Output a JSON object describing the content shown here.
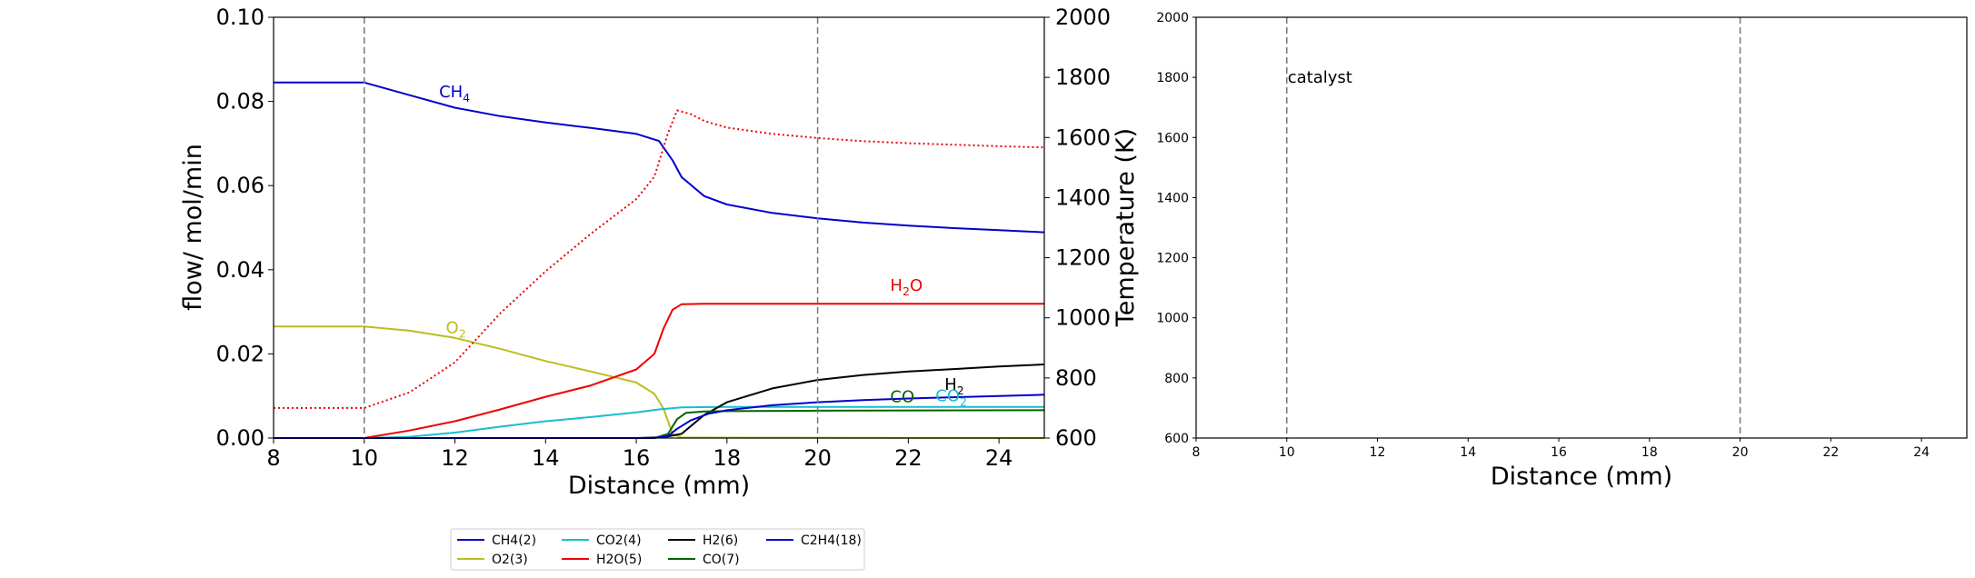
{
  "chart_data": [
    {
      "type": "line",
      "xlabel": "Distance (mm)",
      "ylabel": "flow/ mol/min",
      "ylabel_right": "Temperature (K)",
      "xlim": [
        8,
        25
      ],
      "ylim": [
        0,
        0.1
      ],
      "ylim_right": [
        600,
        2000
      ],
      "xticks": [
        "8",
        "10",
        "12",
        "14",
        "16",
        "18",
        "20",
        "22",
        "24"
      ],
      "yticks": [
        "0.00",
        "0.02",
        "0.04",
        "0.06",
        "0.08",
        "0.10"
      ],
      "yticks_right": [
        "600",
        "800",
        "1000",
        "1200",
        "1400",
        "1600",
        "1800",
        "2000"
      ],
      "vlines": [
        10,
        20
      ],
      "grid": false,
      "legend_position": "bottom-center",
      "series": [
        {
          "name": "CH4(2)",
          "color": "#0000cc",
          "style": "solid",
          "x": [
            8,
            10,
            11,
            12,
            13,
            14,
            15,
            16,
            16.5,
            16.8,
            17,
            17.5,
            18,
            19,
            20,
            21,
            22,
            23,
            24,
            25
          ],
          "values": [
            0.0845,
            0.0845,
            0.0815,
            0.0785,
            0.0765,
            0.075,
            0.0737,
            0.0723,
            0.0706,
            0.066,
            0.062,
            0.0575,
            0.0555,
            0.0535,
            0.0522,
            0.0512,
            0.0505,
            0.0499,
            0.0494,
            0.0489
          ]
        },
        {
          "name": "O2(3)",
          "color": "#bcbd22",
          "style": "solid",
          "x": [
            8,
            10,
            11,
            12,
            13,
            14,
            15,
            16,
            16.4,
            16.6,
            16.8,
            17,
            25
          ],
          "values": [
            0.0265,
            0.0265,
            0.0255,
            0.0238,
            0.0212,
            0.0183,
            0.0158,
            0.0132,
            0.0105,
            0.007,
            0.001,
            0.0001,
            0.0
          ]
        },
        {
          "name": "CO2(4)",
          "color": "#17becf",
          "style": "solid",
          "x": [
            8,
            10,
            11,
            12,
            13,
            14,
            15,
            16,
            16.5,
            17,
            18,
            20,
            25
          ],
          "values": [
            0.0,
            0.0,
            0.0003,
            0.0013,
            0.0027,
            0.004,
            0.005,
            0.0061,
            0.0068,
            0.0073,
            0.0074,
            0.0074,
            0.0074
          ]
        },
        {
          "name": "H2O(5)",
          "color": "#ee0000",
          "style": "solid",
          "x": [
            8,
            10,
            11,
            12,
            13,
            14,
            15,
            16,
            16.4,
            16.6,
            16.8,
            17,
            17.5,
            20,
            25
          ],
          "values": [
            0.0,
            0.0,
            0.0018,
            0.004,
            0.0068,
            0.0098,
            0.0125,
            0.0163,
            0.02,
            0.026,
            0.0305,
            0.0318,
            0.0319,
            0.0319,
            0.0319
          ]
        },
        {
          "name": "H2(6)",
          "color": "#000000",
          "style": "solid",
          "x": [
            8,
            16,
            16.6,
            17,
            17.5,
            18,
            19,
            20,
            21,
            22,
            23,
            24,
            25
          ],
          "values": [
            0.0,
            0.0,
            0.0002,
            0.001,
            0.0055,
            0.0085,
            0.0118,
            0.0138,
            0.015,
            0.0158,
            0.0164,
            0.017,
            0.0175
          ]
        },
        {
          "name": "CO(7)",
          "color": "#006400",
          "style": "solid",
          "x": [
            8,
            16.4,
            16.7,
            16.9,
            17.1,
            17.5,
            18,
            20,
            25
          ],
          "values": [
            0.0,
            0.0,
            0.001,
            0.0045,
            0.006,
            0.0063,
            0.0064,
            0.0065,
            0.0066
          ]
        },
        {
          "name": "C2H4(18)",
          "color": "#0000cc",
          "style": "solid",
          "x": [
            8,
            16.4,
            16.7,
            16.9,
            17.2,
            17.6,
            18,
            19,
            20,
            21,
            22,
            23,
            24,
            25
          ],
          "values": [
            0.0,
            0.0,
            0.0005,
            0.0022,
            0.0042,
            0.0058,
            0.0066,
            0.0078,
            0.0085,
            0.009,
            0.0094,
            0.0097,
            0.01,
            0.0103
          ]
        },
        {
          "name": "Temperature",
          "axis": "right",
          "color": "#ee0000",
          "style": "dotted",
          "x": [
            8,
            10,
            11,
            12,
            13,
            14,
            15,
            16,
            16.4,
            16.7,
            16.9,
            17.2,
            17.5,
            18,
            19,
            20,
            21,
            22,
            23,
            24,
            25
          ],
          "values": [
            700,
            700,
            752,
            852,
            1015,
            1155,
            1280,
            1395,
            1470,
            1615,
            1690,
            1678,
            1655,
            1633,
            1612,
            1598,
            1588,
            1581,
            1576,
            1571,
            1567
          ]
        }
      ],
      "annotations": [
        {
          "text": "CH",
          "sub": "4",
          "x": 11.65,
          "y": 0.081,
          "color": "#0000cc"
        },
        {
          "text": "O",
          "sub": "2",
          "x": 11.8,
          "y": 0.025,
          "color": "#bcbd22"
        },
        {
          "text": "H",
          "sub": "2",
          "after": "O",
          "x": 21.6,
          "y": 0.035,
          "color": "#ee0000"
        },
        {
          "text": "H",
          "sub": "2",
          "x": 22.8,
          "y": 0.0115,
          "color": "#000000"
        },
        {
          "text": "CO",
          "x": 21.6,
          "y": 0.0085,
          "color": "#006400"
        },
        {
          "text": "CO",
          "sub": "2",
          "x": 22.6,
          "y": 0.0088,
          "color": "#17becf"
        }
      ]
    },
    {
      "type": "line",
      "xlabel": "Distance (mm)",
      "xlim": [
        8,
        25.0
      ],
      "ylim": [
        600,
        2000
      ],
      "xticks": [
        "8",
        "10",
        "12",
        "14",
        "16",
        "18",
        "20",
        "22",
        "24"
      ],
      "yticks": [
        "600",
        "800",
        "1000",
        "1200",
        "1400",
        "1600",
        "1800",
        "2000"
      ],
      "vlines": [
        10,
        20
      ],
      "grid": false,
      "annotations": [
        {
          "text": "catalyst",
          "x": 10.0,
          "y": 1800,
          "color": "#000000"
        }
      ],
      "series": []
    }
  ]
}
